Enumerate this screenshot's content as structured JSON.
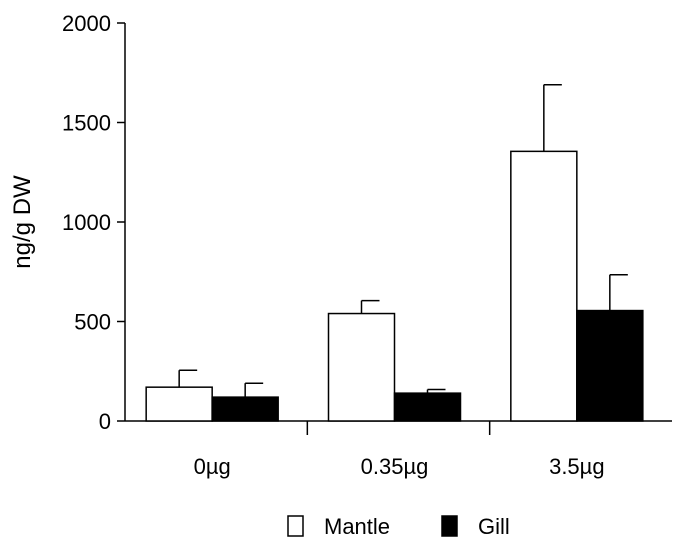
{
  "chart_data": {
    "type": "bar",
    "title": "",
    "xlabel": "",
    "ylabel": "ng/g DW",
    "ylim": [
      0,
      2000
    ],
    "yticks": [
      0,
      500,
      1000,
      1500,
      2000
    ],
    "categories": [
      "0µg",
      "0.35µg",
      "3.5µg"
    ],
    "series": [
      {
        "name": "Mantle",
        "color": "#ffffff",
        "values": [
          170,
          540,
          1355
        ],
        "errors": [
          85,
          65,
          335
        ]
      },
      {
        "name": "Gill",
        "color": "#000000",
        "values": [
          120,
          140,
          555
        ],
        "errors": [
          70,
          18,
          180
        ]
      }
    ],
    "grid": false,
    "legend_position": "bottom"
  }
}
